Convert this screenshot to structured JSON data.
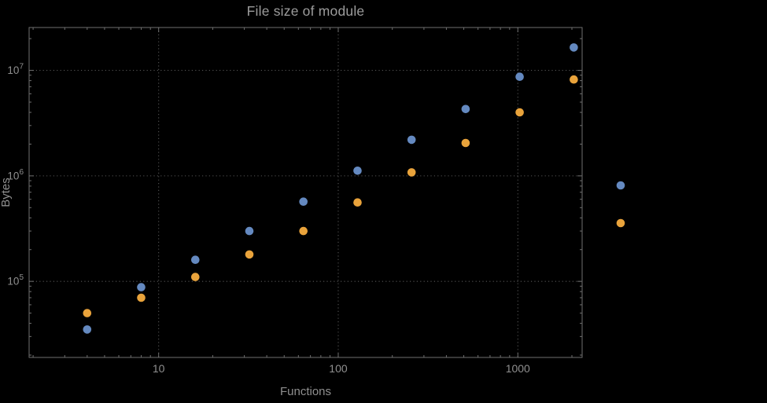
{
  "page": {
    "background": "#000000"
  },
  "chart_data": {
    "type": "scatter",
    "title": "File size of module",
    "xlabel": "Functions",
    "ylabel": "Bytes",
    "x_scale": "log",
    "y_scale": "log",
    "xlim": [
      1.9,
      2280
    ],
    "ylim": [
      19000,
      25500000
    ],
    "x_ticks": [
      10,
      100,
      1000
    ],
    "y_ticks": [
      100000,
      1000000,
      10000000
    ],
    "grid": "dotted",
    "x": [
      4,
      8,
      16,
      32,
      64,
      128,
      256,
      512,
      1024,
      2048
    ],
    "series": [
      {
        "name": "series-1-blue",
        "color": "#6489c0",
        "values": [
          35000,
          88000,
          160000,
          300000,
          570000,
          1120000,
          2200000,
          4300000,
          8700000,
          16500000
        ]
      },
      {
        "name": "series-2-orange",
        "color": "#e9a33b",
        "values": [
          50000,
          70000,
          110000,
          180000,
          300000,
          560000,
          1080000,
          2050000,
          4000000,
          8200000
        ]
      }
    ],
    "legend": {
      "position": "right-of-frame",
      "labels_visible": false,
      "entries": [
        {
          "color": "#6489c0"
        },
        {
          "color": "#e9a33b"
        }
      ]
    },
    "style": {
      "text_color": "#8f8f8f",
      "title_color": "#9c9c9c",
      "frame_color": "#6f6f6f",
      "grid_color": "#545454",
      "tick_color": "#6f6f6f"
    }
  }
}
